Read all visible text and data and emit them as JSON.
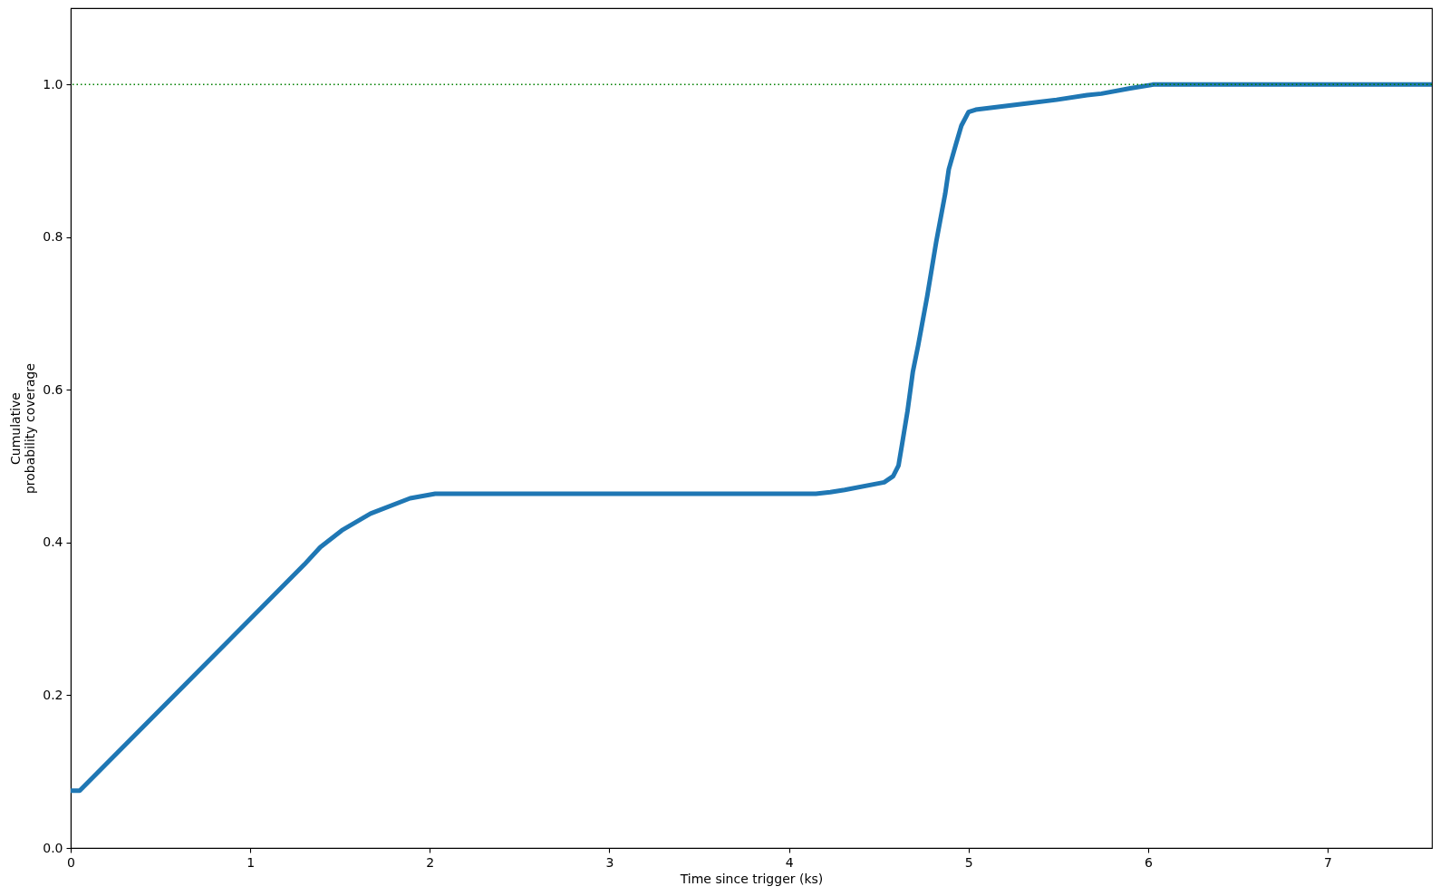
{
  "chart_data": {
    "type": "line",
    "xlabel": "Time since trigger (ks)",
    "ylabel": "Cumulative\nprobability coverage",
    "x": [
      0,
      0.05,
      1.3,
      1.39,
      1.51,
      1.67,
      1.89,
      2.03,
      4.15,
      4.23,
      4.31,
      4.53,
      4.58,
      4.61,
      4.63,
      4.66,
      4.69,
      4.72,
      4.77,
      4.82,
      4.87,
      4.89,
      4.93,
      4.96,
      5.0,
      5.04,
      5.32,
      5.49,
      5.66,
      5.74,
      5.9,
      6.03,
      7.58
    ],
    "series": [
      {
        "color": "#1f77b4",
        "values": [
          0.075,
          0.075,
          0.371,
          0.394,
          0.416,
          0.438,
          0.458,
          0.464,
          0.464,
          0.466,
          0.469,
          0.479,
          0.487,
          0.501,
          0.529,
          0.572,
          0.624,
          0.659,
          0.723,
          0.794,
          0.857,
          0.889,
          0.922,
          0.946,
          0.964,
          0.967,
          0.975,
          0.98,
          0.986,
          0.988,
          0.995,
          1.0,
          1.0
        ]
      }
    ],
    "xlim": [
      0,
      7.58
    ],
    "ylim": [
      0,
      1.1
    ],
    "xticks": [
      0,
      1,
      2,
      3,
      4,
      5,
      6,
      7
    ],
    "yticks": [
      {
        "value": 0,
        "label": "0.0"
      },
      0.2,
      0.4,
      0.6,
      0.8,
      {
        "value": 1,
        "label": "1.0"
      }
    ],
    "ref_lines": [
      {
        "axis": "y",
        "value": 1,
        "color": "#008000",
        "line_style": "dotted"
      }
    ]
  }
}
